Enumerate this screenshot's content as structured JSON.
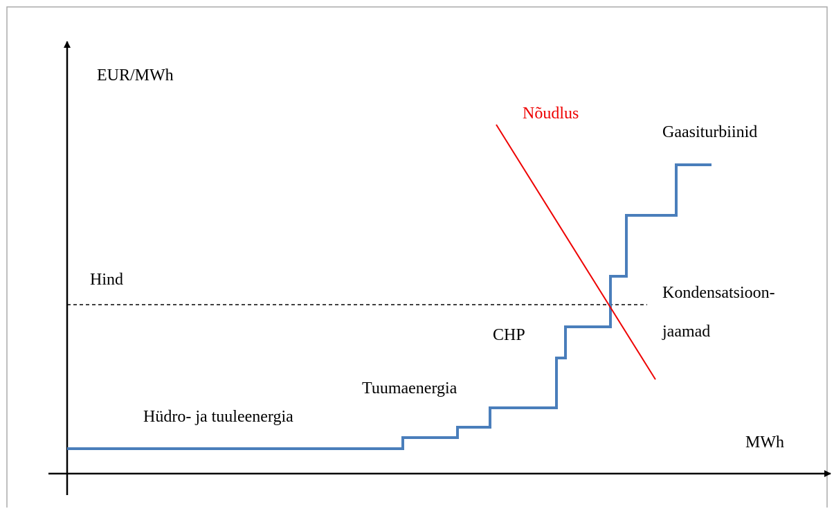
{
  "axis_labels": {
    "y": "EUR/MWh",
    "x": "MWh"
  },
  "demand_label": "Nõudlus",
  "price_label": "Hind",
  "segments": [
    {
      "label": "Hüdro- ja tuuleenergia"
    },
    {
      "label": "Tuumaenergia"
    },
    {
      "label": "CHP"
    },
    {
      "label": "Kondensatsioon-"
    },
    {
      "label": "jaamad"
    },
    {
      "label": "Gaasiturbiinid"
    }
  ]
}
